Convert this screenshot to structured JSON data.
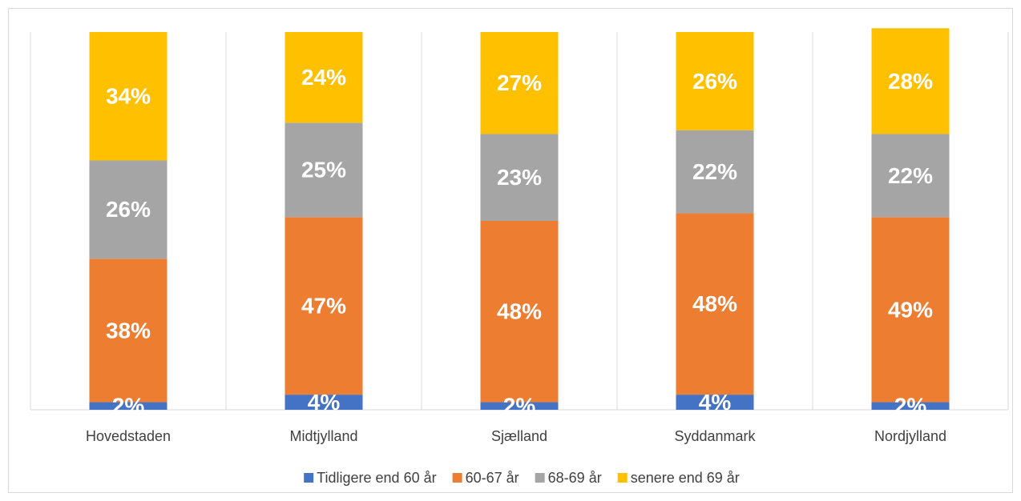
{
  "chart_data": {
    "type": "stacked_bar",
    "categories": [
      "Hovedstaden",
      "Midtjylland",
      "Sjælland",
      "Syddanmark",
      "Nordjylland"
    ],
    "series": [
      {
        "name": "Tidligere end 60 år",
        "color": "#4472c4",
        "values": [
          2,
          4,
          2,
          4,
          2
        ],
        "value_labels": [
          "2%",
          "4%",
          "2%",
          "4%",
          "2%"
        ]
      },
      {
        "name": "60-67 år",
        "color": "#ed7d31",
        "values": [
          38,
          47,
          48,
          48,
          49
        ],
        "value_labels": [
          "38%",
          "47%",
          "48%",
          "48%",
          "49%"
        ]
      },
      {
        "name": "68-69 år",
        "color": "#a5a5a5",
        "values": [
          26,
          25,
          23,
          22,
          22
        ],
        "value_labels": [
          "26%",
          "25%",
          "23%",
          "22%",
          "22%"
        ]
      },
      {
        "name": "senere end 69 år",
        "color": "#ffc000",
        "values": [
          34,
          24,
          27,
          26,
          28
        ],
        "value_labels": [
          "34%",
          "24%",
          "27%",
          "26%",
          "28%"
        ]
      }
    ],
    "ylim": [
      0,
      100
    ],
    "legend": "bottom"
  }
}
